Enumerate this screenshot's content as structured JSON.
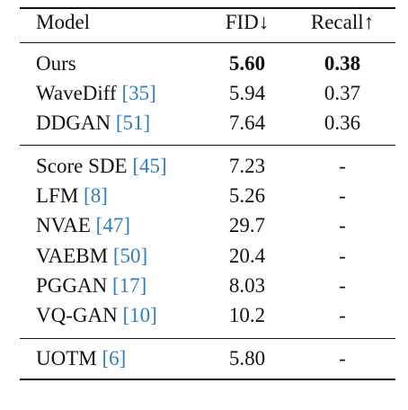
{
  "table": {
    "header": [
      "Model",
      "FID↓",
      "Recall↑"
    ],
    "groups": [
      [
        {
          "model": "Ours",
          "cite": null,
          "fid": "5.60",
          "recall": "0.38",
          "bold": true
        },
        {
          "model": "WaveDiff",
          "cite": "[35]",
          "fid": "5.94",
          "recall": "0.37",
          "bold": false
        },
        {
          "model": "DDGAN",
          "cite": "[51]",
          "fid": "7.64",
          "recall": "0.36",
          "bold": false
        }
      ],
      [
        {
          "model": "Score SDE",
          "cite": "[45]",
          "fid": "7.23",
          "recall": "-",
          "bold": false
        },
        {
          "model": "LFM",
          "cite": "[8]",
          "fid": "5.26",
          "recall": "-",
          "bold": false
        },
        {
          "model": "NVAE",
          "cite": "[47]",
          "fid": "29.7",
          "recall": "-",
          "bold": false
        },
        {
          "model": "VAEBM",
          "cite": "[50]",
          "fid": "20.4",
          "recall": "-",
          "bold": false
        },
        {
          "model": "PGGAN",
          "cite": "[17]",
          "fid": "8.03",
          "recall": "-",
          "bold": false
        },
        {
          "model": "VQ-GAN",
          "cite": "[10]",
          "fid": "10.2",
          "recall": "-",
          "bold": false
        }
      ],
      [
        {
          "model": "UOTM",
          "cite": "[6]",
          "fid": "5.80",
          "recall": "-",
          "bold": false
        }
      ]
    ]
  }
}
